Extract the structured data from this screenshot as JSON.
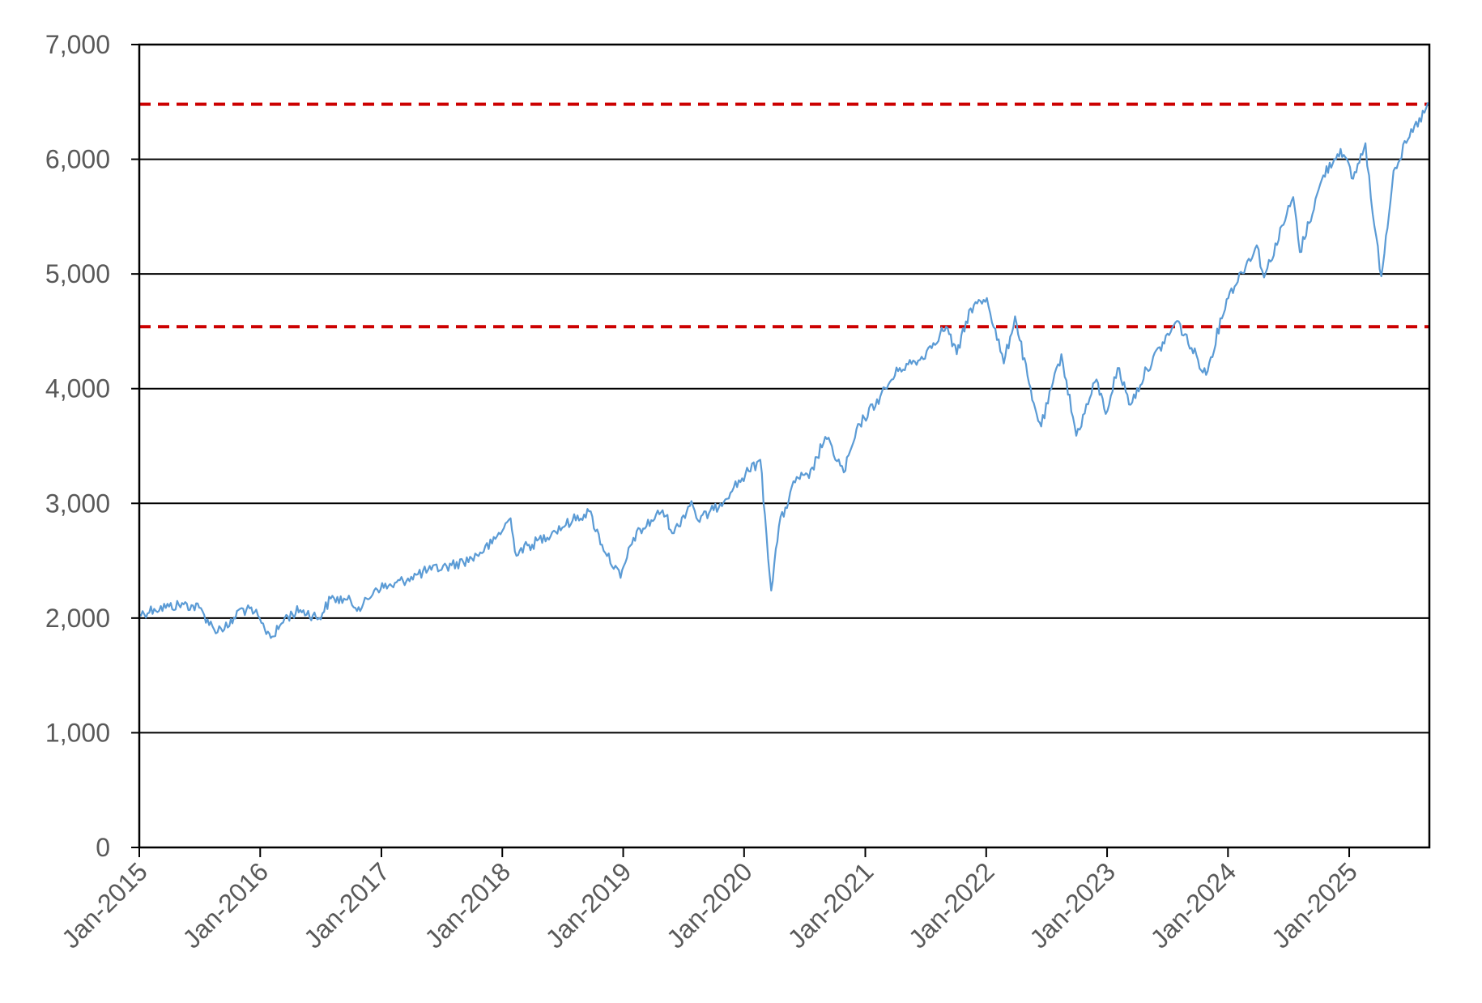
{
  "chart_data": {
    "type": "line",
    "title": "",
    "xlabel": "",
    "ylabel": "",
    "ylim": [
      0,
      7000
    ],
    "xlim": [
      "2015-01-01",
      "2025-08-31"
    ],
    "y_ticks": [
      {
        "value": 0,
        "label": "0"
      },
      {
        "value": 1000,
        "label": "1,000"
      },
      {
        "value": 2000,
        "label": "2,000"
      },
      {
        "value": 3000,
        "label": "3,000"
      },
      {
        "value": 4000,
        "label": "4,000"
      },
      {
        "value": 5000,
        "label": "5,000"
      },
      {
        "value": 6000,
        "label": "6,000"
      },
      {
        "value": 7000,
        "label": "7,000"
      }
    ],
    "x_ticks": [
      {
        "date": "2015-01-01",
        "label": "Jan-2015"
      },
      {
        "date": "2016-01-01",
        "label": "Jan-2016"
      },
      {
        "date": "2017-01-01",
        "label": "Jan-2017"
      },
      {
        "date": "2018-01-01",
        "label": "Jan-2018"
      },
      {
        "date": "2019-01-01",
        "label": "Jan-2019"
      },
      {
        "date": "2020-01-01",
        "label": "Jan-2020"
      },
      {
        "date": "2021-01-01",
        "label": "Jan-2021"
      },
      {
        "date": "2022-01-01",
        "label": "Jan-2022"
      },
      {
        "date": "2023-01-01",
        "label": "Jan-2023"
      },
      {
        "date": "2024-01-01",
        "label": "Jan-2024"
      },
      {
        "date": "2025-01-01",
        "label": "Jan-2025"
      }
    ],
    "grid": true,
    "reference_lines": [
      {
        "value": 6480,
        "color": "#cc0000",
        "style": "dashed"
      },
      {
        "value": 4540,
        "color": "#cc0000",
        "style": "dashed"
      }
    ],
    "series": [
      {
        "color": "#5b9bd5",
        "points": [
          [
            "2015-01-01",
            2030
          ],
          [
            "2015-02-15",
            2080
          ],
          [
            "2015-04-01",
            2100
          ],
          [
            "2015-05-15",
            2120
          ],
          [
            "2015-07-01",
            2090
          ],
          [
            "2015-08-15",
            1900
          ],
          [
            "2015-09-30",
            1930
          ],
          [
            "2015-11-01",
            2080
          ],
          [
            "2015-12-15",
            2050
          ],
          [
            "2016-01-15",
            1900
          ],
          [
            "2016-02-11",
            1840
          ],
          [
            "2016-03-15",
            2000
          ],
          [
            "2016-05-01",
            2070
          ],
          [
            "2016-06-27",
            2000
          ],
          [
            "2016-08-01",
            2170
          ],
          [
            "2016-09-15",
            2160
          ],
          [
            "2016-11-03",
            2090
          ],
          [
            "2016-12-15",
            2260
          ],
          [
            "2017-02-01",
            2280
          ],
          [
            "2017-04-01",
            2360
          ],
          [
            "2017-06-01",
            2420
          ],
          [
            "2017-08-01",
            2460
          ],
          [
            "2017-10-01",
            2520
          ],
          [
            "2017-12-01",
            2650
          ],
          [
            "2018-01-26",
            2870
          ],
          [
            "2018-02-08",
            2580
          ],
          [
            "2018-04-01",
            2640
          ],
          [
            "2018-06-01",
            2750
          ],
          [
            "2018-08-01",
            2850
          ],
          [
            "2018-09-20",
            2930
          ],
          [
            "2018-10-29",
            2640
          ],
          [
            "2018-12-24",
            2350
          ],
          [
            "2019-02-01",
            2700
          ],
          [
            "2019-04-30",
            2940
          ],
          [
            "2019-06-03",
            2740
          ],
          [
            "2019-07-26",
            3020
          ],
          [
            "2019-08-15",
            2850
          ],
          [
            "2019-10-01",
            2940
          ],
          [
            "2019-12-01",
            3140
          ],
          [
            "2020-01-15",
            3280
          ],
          [
            "2020-02-19",
            3380
          ],
          [
            "2020-03-23",
            2240
          ],
          [
            "2020-04-15",
            2800
          ],
          [
            "2020-06-08",
            3230
          ],
          [
            "2020-07-15",
            3220
          ],
          [
            "2020-09-02",
            3580
          ],
          [
            "2020-10-28",
            3270
          ],
          [
            "2020-12-15",
            3690
          ],
          [
            "2021-02-15",
            3930
          ],
          [
            "2021-04-15",
            4180
          ],
          [
            "2021-06-15",
            4250
          ],
          [
            "2021-08-15",
            4480
          ],
          [
            "2021-09-02",
            4540
          ],
          [
            "2021-10-04",
            4300
          ],
          [
            "2021-11-15",
            4700
          ],
          [
            "2022-01-03",
            4790
          ],
          [
            "2022-02-23",
            4220
          ],
          [
            "2022-03-29",
            4630
          ],
          [
            "2022-05-20",
            3900
          ],
          [
            "2022-06-16",
            3670
          ],
          [
            "2022-08-16",
            4300
          ],
          [
            "2022-09-30",
            3590
          ],
          [
            "2022-11-30",
            4080
          ],
          [
            "2022-12-28",
            3780
          ],
          [
            "2023-02-02",
            4180
          ],
          [
            "2023-03-13",
            3860
          ],
          [
            "2023-05-01",
            4170
          ],
          [
            "2023-07-31",
            4590
          ],
          [
            "2023-10-27",
            4120
          ],
          [
            "2023-12-28",
            4780
          ],
          [
            "2024-03-28",
            5250
          ],
          [
            "2024-04-19",
            4970
          ],
          [
            "2024-07-16",
            5670
          ],
          [
            "2024-08-05",
            5190
          ],
          [
            "2024-10-15",
            5860
          ],
          [
            "2024-12-06",
            6090
          ],
          [
            "2025-01-13",
            5830
          ],
          [
            "2025-02-19",
            6140
          ],
          [
            "2025-03-13",
            5520
          ],
          [
            "2025-04-08",
            4980
          ],
          [
            "2025-05-15",
            5900
          ],
          [
            "2025-06-27",
            6170
          ],
          [
            "2025-08-31",
            6480
          ]
        ]
      }
    ]
  }
}
